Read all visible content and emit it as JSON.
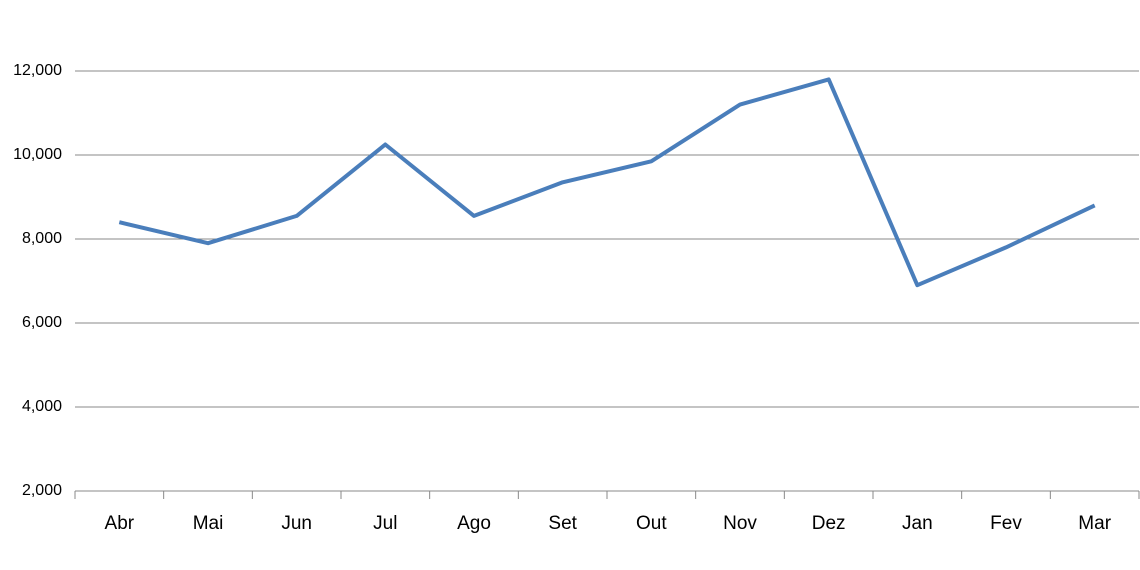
{
  "chart_data": {
    "type": "line",
    "categories": [
      "Abr",
      "Mai",
      "Jun",
      "Jul",
      "Ago",
      "Set",
      "Out",
      "Nov",
      "Dez",
      "Jan",
      "Fev",
      "Mar"
    ],
    "values": [
      8400,
      7900,
      8550,
      10250,
      8550,
      9350,
      9850,
      11200,
      11800,
      6900,
      7800,
      8800
    ],
    "color": "#4a7ebb",
    "ylim": [
      2000,
      13000
    ],
    "yticks": [
      {
        "value": 2000,
        "label": "2,000"
      },
      {
        "value": 4000,
        "label": "4,000"
      },
      {
        "value": 6000,
        "label": "6,000"
      },
      {
        "value": 8000,
        "label": "8,000"
      },
      {
        "value": 10000,
        "label": "10,000"
      },
      {
        "value": 12000,
        "label": "12,000"
      }
    ],
    "grid": true
  }
}
